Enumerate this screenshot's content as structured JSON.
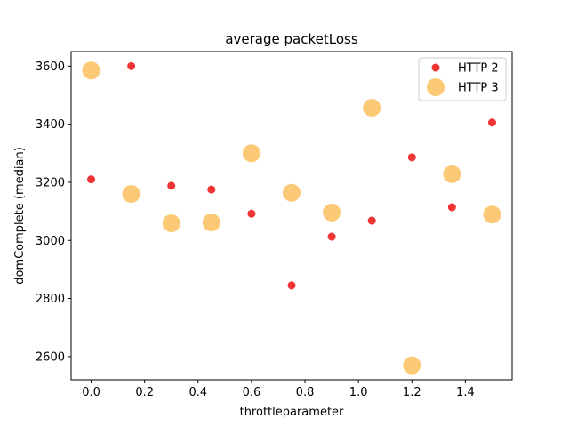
{
  "chart_data": {
    "type": "scatter",
    "title": "average packetLoss",
    "xlabel": "throttleparameter",
    "ylabel": "domComplete (median)",
    "xlim": [
      -0.075,
      1.575
    ],
    "ylim": [
      2520,
      3650
    ],
    "xticks": [
      0.0,
      0.2,
      0.4,
      0.6,
      0.8,
      1.0,
      1.2,
      1.4
    ],
    "xtick_labels": [
      "0.0",
      "0.2",
      "0.4",
      "0.6",
      "0.8",
      "1.0",
      "1.2",
      "1.4"
    ],
    "yticks": [
      2600,
      2800,
      3000,
      3200,
      3400,
      3600
    ],
    "ytick_labels": [
      "2600",
      "2800",
      "3000",
      "3200",
      "3400",
      "3600"
    ],
    "grid": false,
    "legend_position": "top-right",
    "series": [
      {
        "name": "HTTP 2",
        "color": "#ee1111",
        "marker": "small-circle",
        "x": [
          0.0,
          0.15,
          0.3,
          0.45,
          0.6,
          0.75,
          0.9,
          1.05,
          1.2,
          1.35,
          1.5
        ],
        "y": [
          3210,
          3600,
          3188,
          3175,
          3092,
          2845,
          3013,
          3068,
          3286,
          3114,
          3406
        ]
      },
      {
        "name": "HTTP 3",
        "color": "#fbc15e",
        "marker": "large-circle",
        "x": [
          0.0,
          0.15,
          0.3,
          0.45,
          0.6,
          0.75,
          0.9,
          1.05,
          1.2,
          1.35,
          1.5
        ],
        "y": [
          3585,
          3160,
          3059,
          3062,
          3300,
          3164,
          3096,
          3457,
          2570,
          3228,
          3089
        ]
      }
    ]
  }
}
